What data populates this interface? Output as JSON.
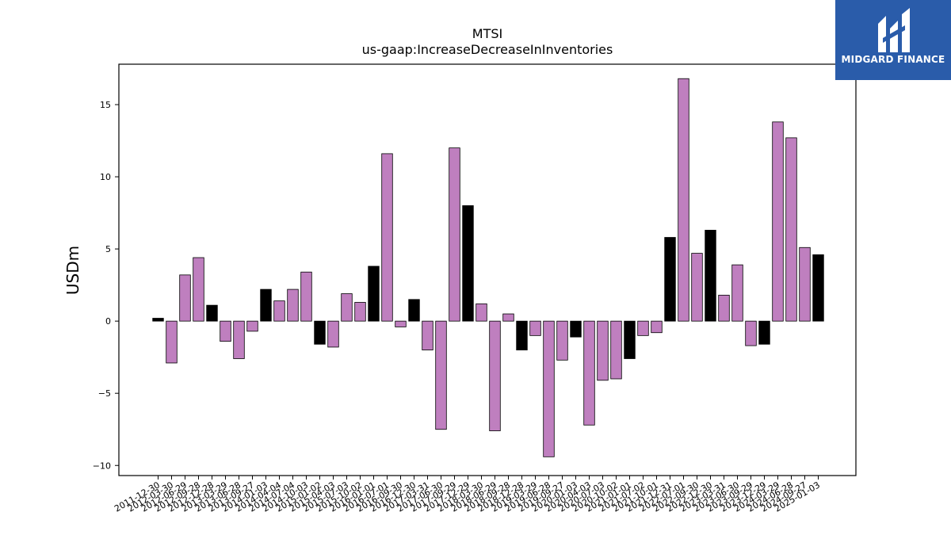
{
  "chart_data": {
    "type": "bar",
    "title": "MTSI",
    "subtitle": "us-gaap:IncreaseDecreaseInInventories",
    "xlabel": "",
    "ylabel": "USDm",
    "ylim": [
      -10.7,
      17.8
    ],
    "yticks": [
      -10,
      -5,
      0,
      5,
      10,
      15
    ],
    "ytick_labels": [
      "−10",
      "−5",
      "0",
      "5",
      "10",
      "15"
    ],
    "grid": false,
    "legend": "none",
    "colors": {
      "quarter": "#bf7fbf",
      "fiscal_year": "#000000",
      "edge": "#000000"
    },
    "categories": [
      "2011-12-30",
      "2012-03-30",
      "2012-06-29",
      "2012-09-28",
      "2012-12-28",
      "2013-03-29",
      "2013-06-28",
      "2013-09-27",
      "2014-01-03",
      "2014-04-04",
      "2014-07-04",
      "2014-10-03",
      "2015-01-02",
      "2015-04-03",
      "2015-07-03",
      "2015-10-02",
      "2016-01-01",
      "2016-07-01",
      "2016-09-30",
      "2016-12-30",
      "2017-03-31",
      "2017-06-30",
      "2017-09-29",
      "2017-12-29",
      "2018-03-30",
      "2018-06-29",
      "2018-09-28",
      "2018-12-28",
      "2019-03-29",
      "2019-06-28",
      "2019-09-27",
      "2020-01-03",
      "2020-04-03",
      "2020-07-03",
      "2020-10-02",
      "2021-01-01",
      "2021-07-02",
      "2021-10-01",
      "2021-12-31",
      "2022-07-01",
      "2022-09-30",
      "2022-12-30",
      "2023-03-31",
      "2023-06-30",
      "2023-09-29",
      "2023-12-29",
      "2024-03-29",
      "2024-06-28",
      "2024-09-27",
      "2025-01-03"
    ],
    "values": [
      0.2,
      -2.9,
      3.2,
      4.4,
      1.1,
      -1.4,
      -2.6,
      -0.7,
      2.2,
      1.4,
      2.2,
      3.4,
      -1.6,
      -1.8,
      1.9,
      1.3,
      3.8,
      11.6,
      -0.4,
      1.5,
      -2.0,
      -7.5,
      12.0,
      8.0,
      1.2,
      -7.6,
      0.5,
      -2.0,
      -1.0,
      -9.4,
      -2.7,
      -1.1,
      -7.2,
      -4.1,
      -4.0,
      -2.6,
      -1.0,
      -0.8,
      5.8,
      16.8,
      4.7,
      6.3,
      1.8,
      3.9,
      -1.7,
      -1.6,
      13.8,
      12.7,
      5.1,
      4.6
    ],
    "fiscal_year_end": [
      true,
      false,
      false,
      false,
      true,
      false,
      false,
      false,
      true,
      false,
      false,
      false,
      true,
      false,
      false,
      false,
      true,
      false,
      false,
      true,
      false,
      false,
      false,
      true,
      false,
      false,
      false,
      true,
      false,
      false,
      false,
      true,
      false,
      false,
      false,
      true,
      false,
      false,
      true,
      false,
      false,
      true,
      false,
      false,
      false,
      true,
      false,
      false,
      false,
      true
    ]
  },
  "logo": {
    "text": "MIDGARD FINANCE",
    "icon": "midgard-logo-icon"
  }
}
